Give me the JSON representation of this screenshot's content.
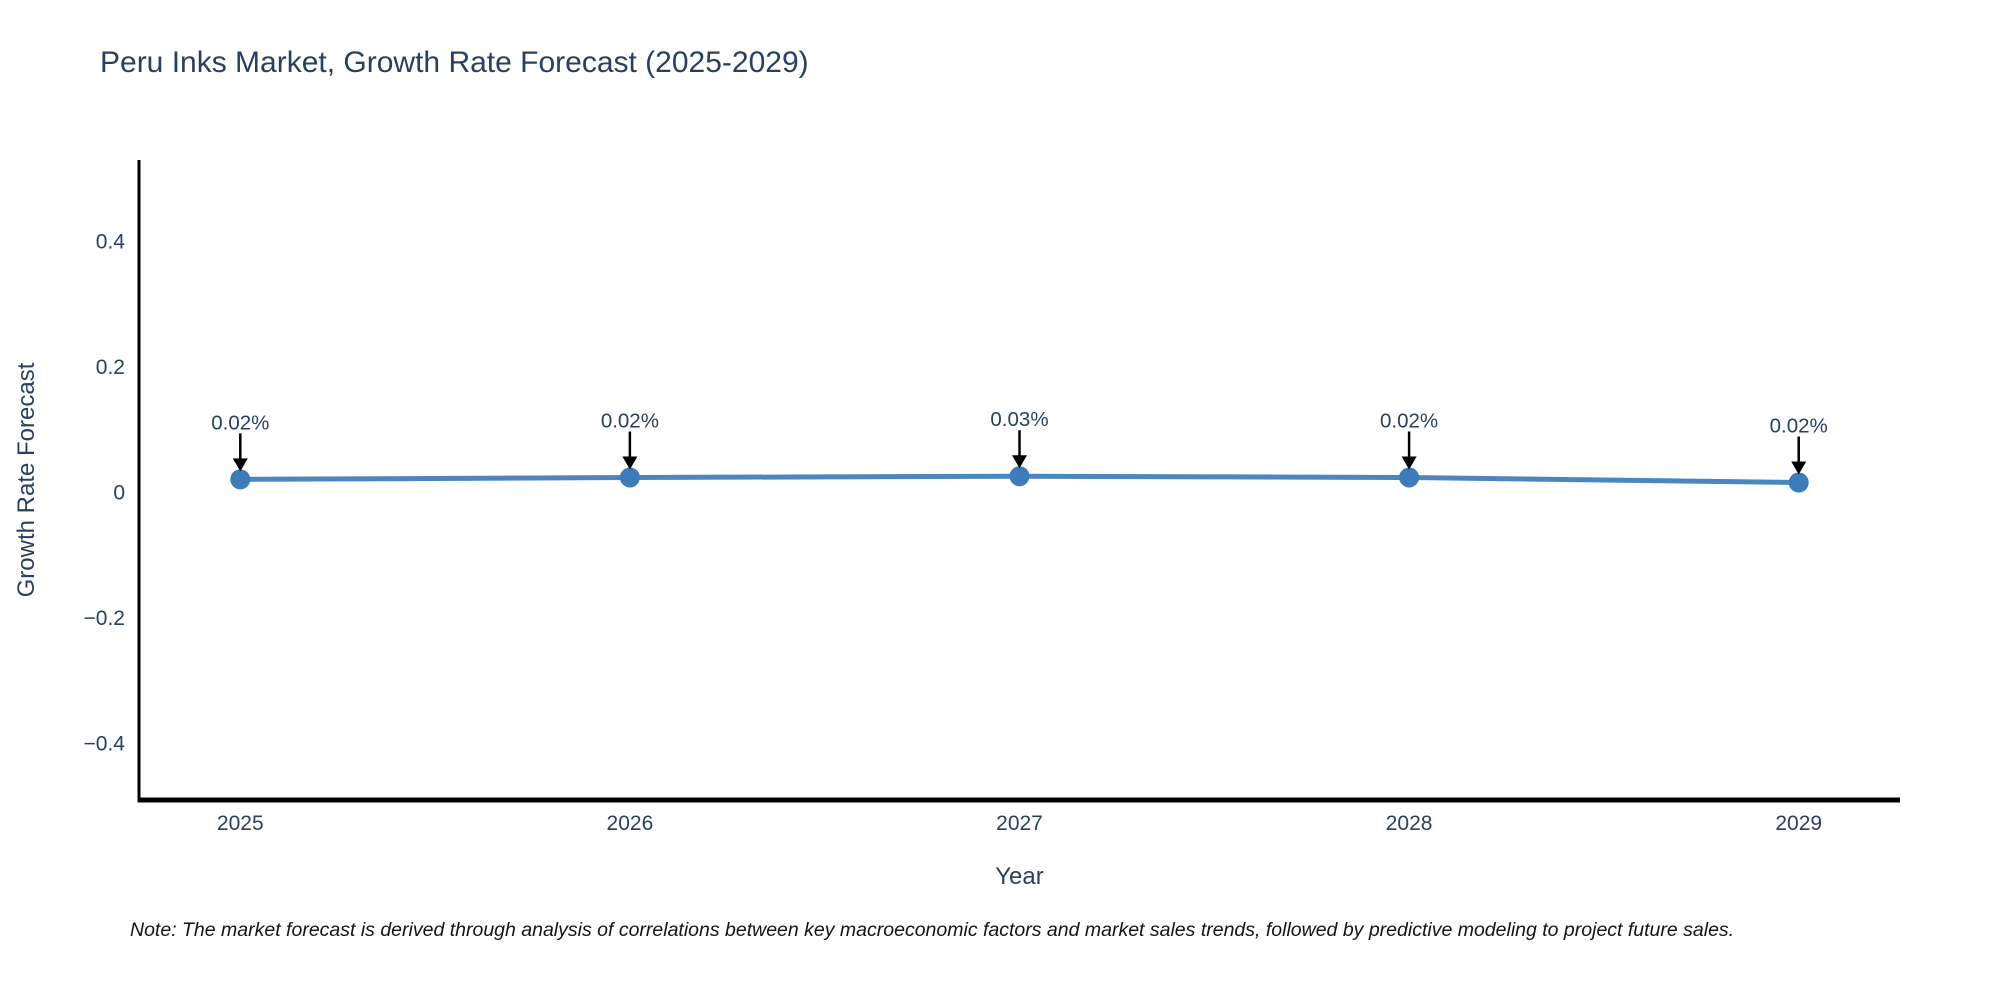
{
  "chart_data": {
    "type": "line",
    "title": "Peru Inks Market, Growth Rate Forecast (2025-2029)",
    "xlabel": "Year",
    "ylabel": "Growth Rate Forecast",
    "x": [
      2025,
      2026,
      2027,
      2028,
      2029
    ],
    "x_tick_labels": [
      "2025",
      "2026",
      "2027",
      "2028",
      "2029"
    ],
    "values": [
      0.02,
      0.02,
      0.03,
      0.02,
      0.02
    ],
    "plotted_values": [
      0.021,
      0.024,
      0.026,
      0.024,
      0.016
    ],
    "annotations": [
      "0.02%",
      "0.02%",
      "0.03%",
      "0.02%",
      "0.02%"
    ],
    "y_ticks": [
      0.4,
      0.2,
      0,
      -0.2,
      -0.4
    ],
    "y_tick_labels": [
      "0.4",
      "0.2",
      "0",
      "−0.2",
      "−0.4"
    ],
    "xlim": [
      2024.74,
      2029.26
    ],
    "ylim": [
      -0.49,
      0.53
    ],
    "grid": false,
    "legend": "none",
    "background": "#ffffff",
    "line_color": "#4a86c0",
    "marker_color": "#3d7cb8",
    "axis_color": "#000000",
    "arrow_color": "#000000",
    "text_color": "#2a3f5f"
  },
  "note": {
    "text": "Note: The market forecast is derived through analysis of correlations between key macroeconomic factors and market sales trends, followed by predictive modeling to project future sales."
  }
}
